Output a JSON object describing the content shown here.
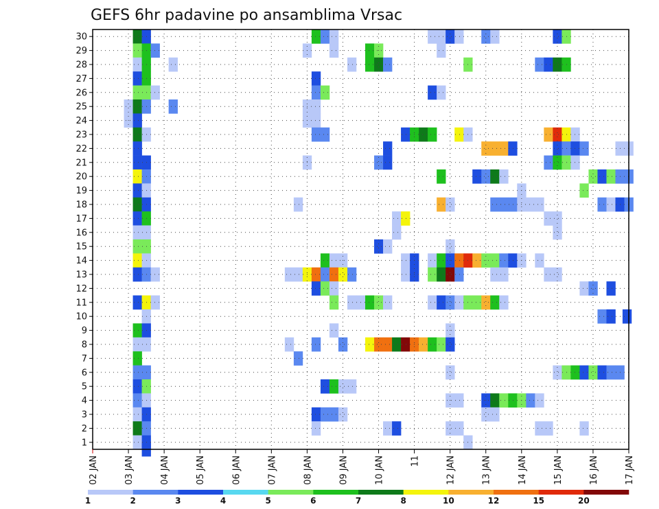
{
  "chart_data": {
    "type": "heatmap",
    "title": "GEFS 6hr padavine po ansamblima Vrsac",
    "y_ticks": [
      "1",
      "2",
      "3",
      "4",
      "5",
      "6",
      "7",
      "8",
      "9",
      "10",
      "11",
      "12",
      "13",
      "14",
      "15",
      "16",
      "17",
      "18",
      "19",
      "20",
      "21",
      "22",
      "23",
      "24",
      "25",
      "26",
      "27",
      "28",
      "29",
      "30"
    ],
    "x_ticks": [
      "02 JAN",
      "03 JAN",
      "04 JAN",
      "05 JAN",
      "06 JAN",
      "07 JAN",
      "08 JAN",
      "09 JAN",
      "10 JAN",
      "11",
      "12 JAN",
      "13 JAN",
      "14 JAN",
      "15 JAN",
      "16 JAN",
      "17 JAN"
    ],
    "x_tick_day": [
      2,
      3,
      4,
      5,
      6,
      7,
      8,
      9,
      10,
      11,
      12,
      13,
      14,
      15,
      16,
      17
    ],
    "x_range_days": [
      2,
      17
    ],
    "y_range_members": [
      0.5,
      30.5
    ],
    "colorbar": {
      "levels": [
        "1",
        "2",
        "3",
        "4",
        "5",
        "6",
        "7",
        "8",
        "10",
        "12",
        "15",
        "20"
      ],
      "colors": [
        "#b8c8f8",
        "#5a88f0",
        "#1e4ee0",
        "#58d8f0",
        "#7aea5a",
        "#1ec01e",
        "#0e7a1a",
        "#f4f40c",
        "#f8b030",
        "#f07010",
        "#e02a0a",
        "#820808"
      ]
    },
    "cells": [
      [
        3.25,
        30,
        7
      ],
      [
        3.5,
        30,
        3
      ],
      [
        8.25,
        30,
        6
      ],
      [
        8.5,
        30,
        2
      ],
      [
        8.75,
        30,
        1
      ],
      [
        11.5,
        30,
        1
      ],
      [
        11.75,
        30,
        1
      ],
      [
        12,
        30,
        3
      ],
      [
        12.25,
        30,
        1
      ],
      [
        13.0,
        30,
        2
      ],
      [
        13.25,
        30,
        1
      ],
      [
        15.0,
        30,
        3
      ],
      [
        15.25,
        30,
        5
      ],
      [
        3.25,
        29,
        5
      ],
      [
        3.5,
        29,
        6
      ],
      [
        3.75,
        29,
        2
      ],
      [
        8.0,
        29,
        1
      ],
      [
        8.75,
        29,
        1
      ],
      [
        9.75,
        29,
        6
      ],
      [
        10.0,
        29,
        5
      ],
      [
        11.75,
        29,
        1
      ],
      [
        3.25,
        28,
        1
      ],
      [
        3.5,
        28,
        6
      ],
      [
        4.25,
        28,
        1
      ],
      [
        9.25,
        28,
        1
      ],
      [
        9.75,
        28,
        6
      ],
      [
        10.0,
        28,
        7
      ],
      [
        10.25,
        28,
        2
      ],
      [
        12.5,
        28,
        5
      ],
      [
        14.5,
        28,
        2
      ],
      [
        14.75,
        28,
        3
      ],
      [
        15.0,
        28,
        7
      ],
      [
        15.25,
        28,
        6
      ],
      [
        3.25,
        27,
        3
      ],
      [
        3.5,
        27,
        6
      ],
      [
        8.25,
        27,
        3
      ],
      [
        3.25,
        26,
        5
      ],
      [
        3.5,
        26,
        5
      ],
      [
        3.75,
        26,
        1
      ],
      [
        8.25,
        26,
        2
      ],
      [
        8.5,
        26,
        5
      ],
      [
        11.5,
        26,
        3
      ],
      [
        11.75,
        26,
        1
      ],
      [
        3.0,
        25,
        1
      ],
      [
        3.25,
        25,
        7
      ],
      [
        3.5,
        25,
        2
      ],
      [
        4.25,
        25,
        2
      ],
      [
        8.0,
        25,
        1
      ],
      [
        8.25,
        25,
        1
      ],
      [
        3.0,
        24,
        1
      ],
      [
        3.25,
        24,
        3
      ],
      [
        8.0,
        24,
        1
      ],
      [
        8.25,
        24,
        1
      ],
      [
        3.25,
        23,
        7
      ],
      [
        3.5,
        23,
        1
      ],
      [
        8.25,
        23,
        2
      ],
      [
        8.5,
        23,
        2
      ],
      [
        10.75,
        23,
        3
      ],
      [
        11.0,
        23,
        6
      ],
      [
        11.25,
        23,
        7
      ],
      [
        11.5,
        23,
        6
      ],
      [
        12.25,
        23,
        8
      ],
      [
        12.5,
        23,
        1
      ],
      [
        14.75,
        23,
        9
      ],
      [
        15.0,
        23,
        11
      ],
      [
        15.25,
        23,
        8
      ],
      [
        15.5,
        23,
        1
      ],
      [
        3.25,
        22,
        3
      ],
      [
        10.25,
        22,
        3
      ],
      [
        13.0,
        22,
        9
      ],
      [
        13.25,
        22,
        9
      ],
      [
        13.5,
        22,
        9
      ],
      [
        13.75,
        22,
        3
      ],
      [
        15.0,
        22,
        3
      ],
      [
        15.25,
        22,
        2
      ],
      [
        15.5,
        22,
        3
      ],
      [
        15.75,
        22,
        2
      ],
      [
        16.75,
        22,
        1
      ],
      [
        17.0,
        22,
        1
      ],
      [
        3.25,
        21,
        3
      ],
      [
        3.5,
        21,
        3
      ],
      [
        8.0,
        21,
        1
      ],
      [
        10.0,
        21,
        2
      ],
      [
        10.25,
        21,
        3
      ],
      [
        14.75,
        21,
        2
      ],
      [
        15.0,
        21,
        6
      ],
      [
        15.25,
        21,
        5
      ],
      [
        15.5,
        21,
        1
      ],
      [
        3.25,
        20,
        8
      ],
      [
        3.5,
        20,
        2
      ],
      [
        11.75,
        20,
        6
      ],
      [
        12.75,
        20,
        3
      ],
      [
        13.0,
        20,
        2
      ],
      [
        13.25,
        20,
        7
      ],
      [
        13.5,
        20,
        1
      ],
      [
        16.0,
        20,
        5
      ],
      [
        16.25,
        20,
        3
      ],
      [
        16.5,
        20,
        5
      ],
      [
        16.75,
        20,
        2
      ],
      [
        17.0,
        20,
        2
      ],
      [
        3.25,
        19,
        3
      ],
      [
        3.5,
        19,
        1
      ],
      [
        14.0,
        19,
        1
      ],
      [
        15.75,
        19,
        5
      ],
      [
        3.25,
        18,
        7
      ],
      [
        3.5,
        18,
        3
      ],
      [
        7.75,
        18,
        1
      ],
      [
        11.75,
        18,
        9
      ],
      [
        12.0,
        18,
        1
      ],
      [
        13.25,
        18,
        2
      ],
      [
        13.5,
        18,
        2
      ],
      [
        13.75,
        18,
        2
      ],
      [
        14.0,
        18,
        1
      ],
      [
        14.25,
        18,
        1
      ],
      [
        14.5,
        18,
        1
      ],
      [
        16.25,
        18,
        2
      ],
      [
        16.5,
        18,
        1
      ],
      [
        16.75,
        18,
        3
      ],
      [
        17.0,
        18,
        2
      ],
      [
        3.25,
        17,
        3
      ],
      [
        3.5,
        17,
        6
      ],
      [
        10.5,
        17,
        1
      ],
      [
        10.75,
        17,
        8
      ],
      [
        14.75,
        17,
        1
      ],
      [
        15.0,
        17,
        1
      ],
      [
        3.25,
        16,
        1
      ],
      [
        3.5,
        16,
        1
      ],
      [
        10.5,
        16,
        1
      ],
      [
        15.0,
        16,
        1
      ],
      [
        3.25,
        15,
        5
      ],
      [
        3.5,
        15,
        5
      ],
      [
        10.0,
        15,
        3
      ],
      [
        10.25,
        15,
        1
      ],
      [
        12.0,
        15,
        1
      ],
      [
        3.25,
        14,
        8
      ],
      [
        3.5,
        14,
        1
      ],
      [
        8.5,
        14,
        6
      ],
      [
        8.75,
        14,
        1
      ],
      [
        9.0,
        14,
        1
      ],
      [
        10.75,
        14,
        1
      ],
      [
        11.0,
        14,
        3
      ],
      [
        11.5,
        14,
        1
      ],
      [
        11.75,
        14,
        6
      ],
      [
        12.0,
        14,
        3
      ],
      [
        12.25,
        14,
        10
      ],
      [
        12.5,
        14,
        11
      ],
      [
        12.75,
        14,
        9
      ],
      [
        13.0,
        14,
        5
      ],
      [
        13.25,
        14,
        5
      ],
      [
        13.5,
        14,
        2
      ],
      [
        13.75,
        14,
        3
      ],
      [
        14.0,
        14,
        1
      ],
      [
        14.5,
        14,
        1
      ],
      [
        3.25,
        13,
        3
      ],
      [
        3.5,
        13,
        2
      ],
      [
        3.75,
        13,
        1
      ],
      [
        7.5,
        13,
        1
      ],
      [
        7.75,
        13,
        1
      ],
      [
        8.0,
        13,
        8
      ],
      [
        8.25,
        13,
        10
      ],
      [
        8.5,
        13,
        2
      ],
      [
        8.75,
        13,
        10
      ],
      [
        9.0,
        13,
        8
      ],
      [
        9.25,
        13,
        2
      ],
      [
        10.75,
        13,
        1
      ],
      [
        11.0,
        13,
        3
      ],
      [
        11.5,
        13,
        5
      ],
      [
        11.75,
        13,
        7
      ],
      [
        12.0,
        13,
        12
      ],
      [
        12.25,
        13,
        2
      ],
      [
        13.25,
        13,
        1
      ],
      [
        13.5,
        13,
        1
      ],
      [
        14.75,
        13,
        1
      ],
      [
        15.0,
        13,
        1
      ],
      [
        8.25,
        12,
        3
      ],
      [
        8.5,
        12,
        5
      ],
      [
        8.75,
        12,
        1
      ],
      [
        15.75,
        12,
        1
      ],
      [
        16.0,
        12,
        2
      ],
      [
        16.5,
        12,
        3
      ],
      [
        3.25,
        11,
        3
      ],
      [
        3.5,
        11,
        8
      ],
      [
        3.75,
        11,
        1
      ],
      [
        8.75,
        11,
        5
      ],
      [
        9.25,
        11,
        1
      ],
      [
        9.5,
        11,
        1
      ],
      [
        9.75,
        11,
        6
      ],
      [
        10.0,
        11,
        5
      ],
      [
        10.25,
        11,
        1
      ],
      [
        11.5,
        11,
        1
      ],
      [
        11.75,
        11,
        3
      ],
      [
        12.0,
        11,
        2
      ],
      [
        12.25,
        11,
        1
      ],
      [
        12.5,
        11,
        5
      ],
      [
        12.75,
        11,
        5
      ],
      [
        13.0,
        11,
        9
      ],
      [
        13.25,
        11,
        6
      ],
      [
        13.5,
        11,
        1
      ],
      [
        3.5,
        10,
        1
      ],
      [
        16.25,
        10,
        2
      ],
      [
        16.5,
        10,
        3
      ],
      [
        16.95,
        10,
        3
      ],
      [
        3.25,
        9,
        6
      ],
      [
        3.5,
        9,
        3
      ],
      [
        8.75,
        9,
        1
      ],
      [
        12.0,
        9,
        1
      ],
      [
        3.25,
        8,
        1
      ],
      [
        3.5,
        8,
        1
      ],
      [
        7.5,
        8,
        1
      ],
      [
        8.25,
        8,
        2
      ],
      [
        9.0,
        8,
        2
      ],
      [
        9.75,
        8,
        8
      ],
      [
        10.0,
        8,
        10
      ],
      [
        10.25,
        8,
        10
      ],
      [
        10.5,
        8,
        7
      ],
      [
        10.75,
        8,
        12
      ],
      [
        11.0,
        8,
        10
      ],
      [
        11.25,
        8,
        9
      ],
      [
        11.5,
        8,
        6
      ],
      [
        11.75,
        8,
        5
      ],
      [
        12.0,
        8,
        3
      ],
      [
        3.25,
        7,
        6
      ],
      [
        7.75,
        7,
        2
      ],
      [
        3.25,
        6,
        2
      ],
      [
        3.5,
        6,
        2
      ],
      [
        12.0,
        6,
        1
      ],
      [
        15.0,
        6,
        1
      ],
      [
        15.25,
        6,
        5
      ],
      [
        15.5,
        6,
        6
      ],
      [
        15.75,
        6,
        3
      ],
      [
        16.0,
        6,
        5
      ],
      [
        16.25,
        6,
        3
      ],
      [
        16.5,
        6,
        2
      ],
      [
        16.75,
        6,
        2
      ],
      [
        3.25,
        5,
        3
      ],
      [
        3.5,
        5,
        5
      ],
      [
        8.5,
        5,
        3
      ],
      [
        8.75,
        5,
        6
      ],
      [
        9.0,
        5,
        1
      ],
      [
        9.25,
        5,
        1
      ],
      [
        3.25,
        4,
        2
      ],
      [
        3.5,
        4,
        1
      ],
      [
        12.0,
        4,
        1
      ],
      [
        12.25,
        4,
        1
      ],
      [
        13.0,
        4,
        3
      ],
      [
        13.25,
        4,
        7
      ],
      [
        13.5,
        4,
        5
      ],
      [
        13.75,
        4,
        6
      ],
      [
        14.0,
        4,
        5
      ],
      [
        14.25,
        4,
        2
      ],
      [
        14.5,
        4,
        1
      ],
      [
        3.25,
        3,
        1
      ],
      [
        3.5,
        3,
        3
      ],
      [
        8.25,
        3,
        3
      ],
      [
        8.5,
        3,
        2
      ],
      [
        8.75,
        3,
        2
      ],
      [
        9.0,
        3,
        1
      ],
      [
        13.0,
        3,
        1
      ],
      [
        13.25,
        3,
        1
      ],
      [
        3.25,
        2,
        7
      ],
      [
        3.5,
        2,
        2
      ],
      [
        8.25,
        2,
        1
      ],
      [
        10.25,
        2,
        1
      ],
      [
        10.5,
        2,
        3
      ],
      [
        12.0,
        2,
        1
      ],
      [
        12.25,
        2,
        1
      ],
      [
        14.5,
        2,
        1
      ],
      [
        14.75,
        2,
        1
      ],
      [
        15.75,
        2,
        1
      ],
      [
        3.25,
        1,
        1
      ],
      [
        3.5,
        1,
        3
      ],
      [
        12.5,
        1,
        1
      ],
      [
        3.5,
        0.5,
        3
      ]
    ]
  }
}
